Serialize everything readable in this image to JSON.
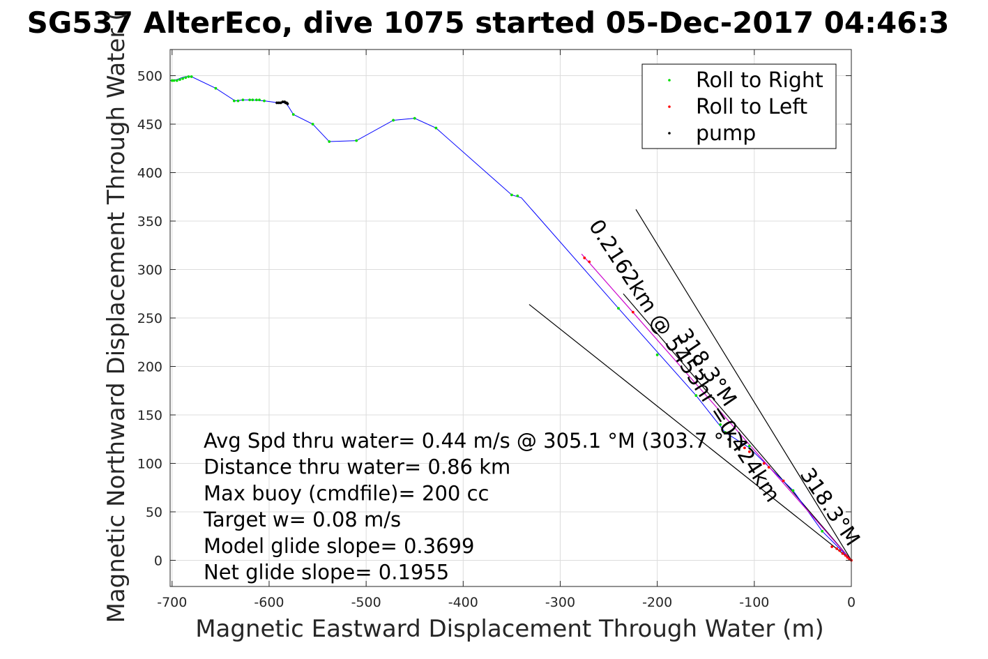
{
  "chart_data": {
    "type": "scatter",
    "title": "SG537 AlterEco, dive 1075 started 05-Dec-2017 04:46:3",
    "xlabel": "Magnetic Eastward Displacement Through Water (m)",
    "ylabel": "Magnetic Northward Displacement Through Water (",
    "xlim": [
      -702,
      0
    ],
    "ylim": [
      -27,
      527
    ],
    "x_ticks": [
      -700,
      -600,
      -500,
      -400,
      -300,
      -200,
      -100,
      0
    ],
    "y_ticks": [
      0,
      50,
      100,
      150,
      200,
      250,
      300,
      350,
      400,
      450,
      500
    ],
    "grid": true,
    "legend_position": "top-right",
    "legend": [
      "Roll to Right",
      "Roll to Left",
      "pump"
    ],
    "colors": {
      "track": "#0000ff",
      "roll_right": "#00dd00",
      "roll_left": "#ff0000",
      "pump": "#000000",
      "avg_vector": "#cc00cc",
      "lines": "#000000"
    },
    "series": [
      {
        "name": "Roll to Right",
        "x": [
          -700,
          -698,
          -695,
          -692,
          -689,
          -686,
          -683,
          -680,
          -655,
          -636,
          -632,
          -627,
          -620,
          -617,
          -613,
          -610,
          -605,
          -575,
          -555,
          -538,
          -510,
          -472,
          -450,
          -428,
          -350,
          -344,
          -240,
          -200,
          -160,
          -135,
          -130,
          -105,
          -60,
          -30
        ],
        "y": [
          495,
          495,
          495,
          496,
          497,
          498,
          499,
          499,
          487,
          474,
          474,
          475,
          475,
          475,
          475,
          475,
          474,
          460,
          450,
          432,
          433,
          454,
          456,
          446,
          377,
          376,
          260,
          212,
          170,
          140,
          132,
          118,
          72,
          30
        ]
      },
      {
        "name": "Roll to Left",
        "x": [
          -275,
          -270,
          -225,
          -110,
          -105,
          -90,
          -85,
          -70,
          -20,
          -15,
          -12,
          -9,
          -6,
          -4,
          -2,
          0
        ],
        "y": [
          312,
          308,
          256,
          116,
          112,
          100,
          96,
          82,
          14,
          12,
          10,
          7,
          5,
          3,
          1,
          0
        ]
      },
      {
        "name": "pump",
        "x": [
          -592,
          -590,
          -588,
          -586,
          -584,
          -583,
          -582,
          -581
        ],
        "y": [
          472,
          472,
          472,
          473,
          473,
          472,
          472,
          471
        ]
      }
    ],
    "track": {
      "x": [
        -702,
        -700,
        -695,
        -690,
        -686,
        -683,
        -680,
        -655,
        -635,
        -627,
        -617,
        -605,
        -590,
        -583,
        -580,
        -575,
        -555,
        -538,
        -510,
        -472,
        -450,
        -428,
        -350,
        -340,
        -240,
        -160,
        -130,
        -105,
        -60,
        -30,
        0
      ],
      "y": [
        495,
        495,
        496,
        498,
        499,
        499,
        499,
        487,
        474,
        475,
        475,
        474,
        472,
        472,
        468,
        460,
        450,
        432,
        433,
        454,
        456,
        446,
        377,
        374,
        260,
        170,
        132,
        116,
        72,
        30,
        0
      ]
    },
    "avg_vector": {
      "x": [
        0,
        -278
      ],
      "y": [
        0,
        316
      ]
    },
    "lines": [
      {
        "x": [
          0,
          -222
        ],
        "y": [
          0,
          362
        ]
      },
      {
        "x": [
          0,
          -332
        ],
        "y": [
          0,
          264
        ]
      },
      {
        "x": [
          0,
          -235
        ],
        "y": [
          0,
          275
        ]
      }
    ],
    "rotated_labels": [
      {
        "text": "318.3°M",
        "x": -155,
        "y": 195,
        "angle": 56
      },
      {
        "text": "0.2162km @ 5453hr =0.424km",
        "x": -178,
        "y": 202,
        "angle": 57
      },
      {
        "text": "318.3°M",
        "x": -28,
        "y": 51,
        "angle": 56
      }
    ],
    "annotations": [
      "Avg Spd thru water=  0.44 m/s @ 305.1 °M (303.7 °T)",
      "Distance thru water=  0.86 km",
      "Max buoy (cmdfile)= 200 cc",
      "Target w= 0.08 m/s",
      "Model glide slope= 0.3699",
      "Net glide slope= 0.1955"
    ]
  }
}
